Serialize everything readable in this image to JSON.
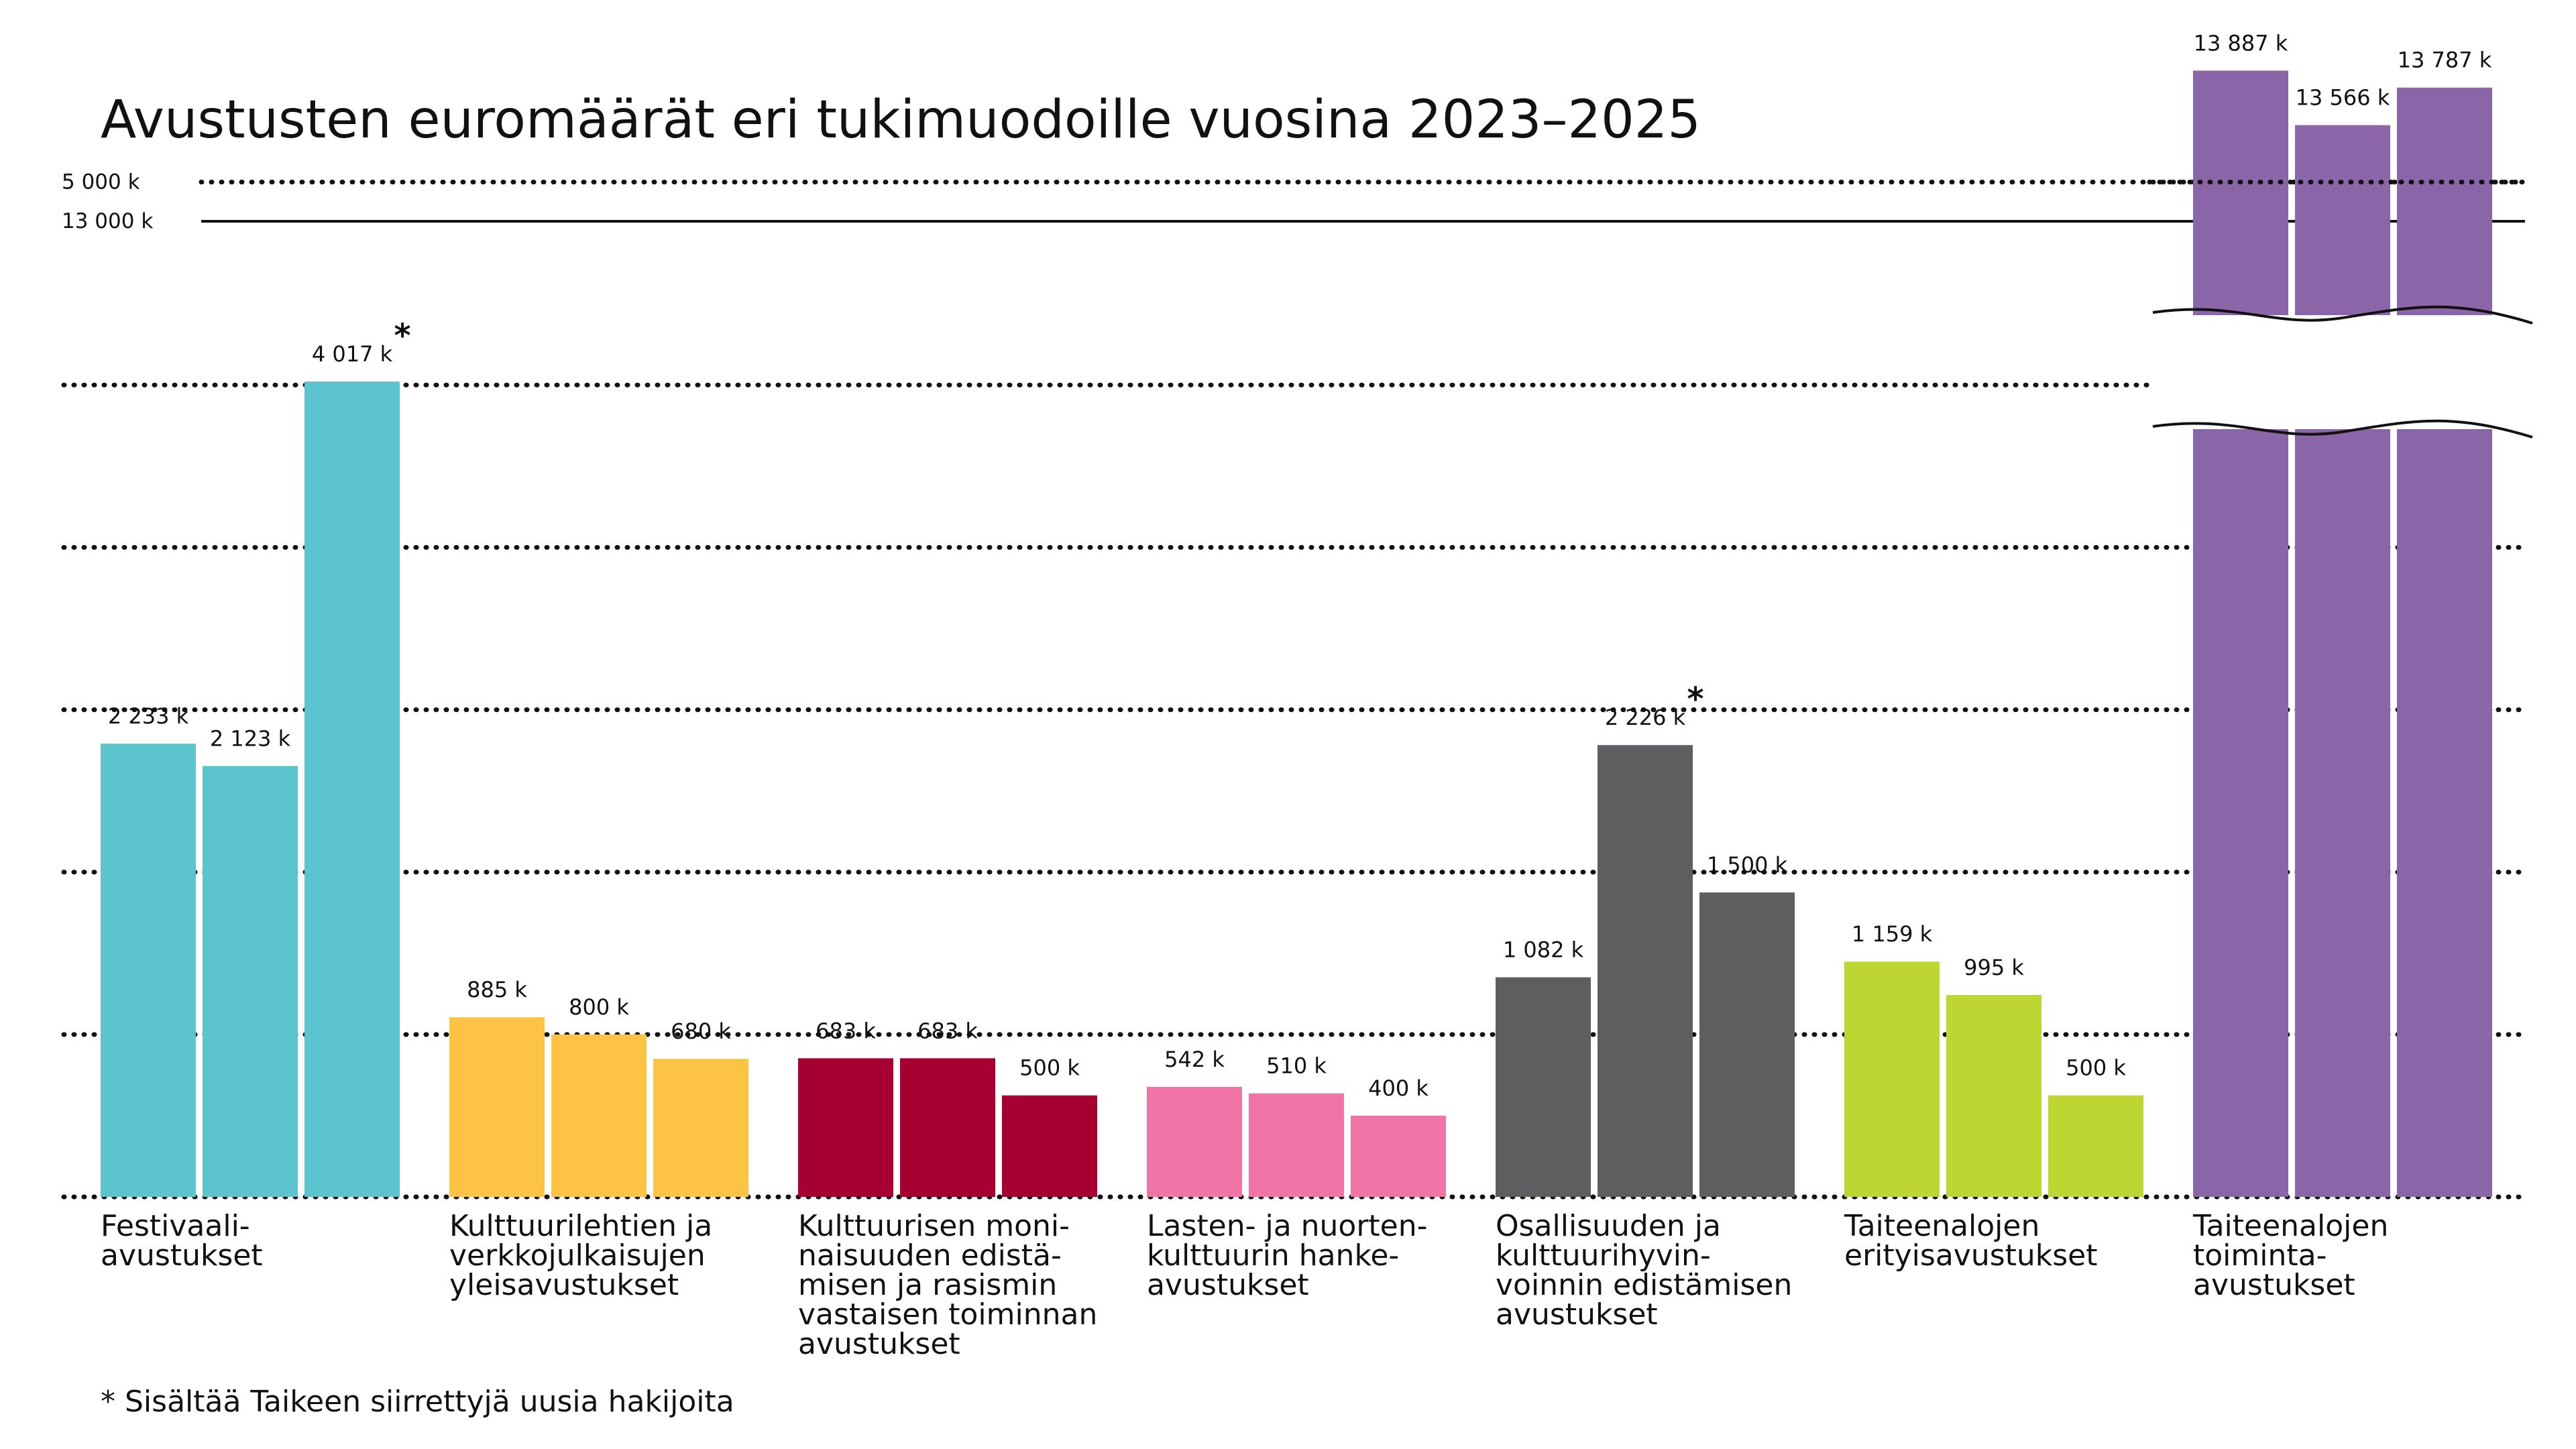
{
  "chart_data": {
    "type": "bar",
    "title": "Avustusten euromäärät eri tukimuodoille vuosina 2023–2025",
    "footnote": "* Sisältää Taikeen siirrettyjä uusia hakijoita",
    "y_ticks": [
      {
        "value": 5000,
        "label": "5 000 k"
      },
      {
        "value": 13000,
        "label": "13 000 k"
      }
    ],
    "gridlines": [
      0,
      800,
      1600,
      2400,
      3200,
      4000,
      5000
    ],
    "axis_break": {
      "from": 5000,
      "to": 13000
    },
    "ylim": [
      0,
      14000
    ],
    "categories": [
      {
        "name_lines": [
          "Festivaali-",
          "avustukset"
        ],
        "color": "#5bc4cc",
        "values": [
          2233,
          2123,
          4017
        ],
        "labels": [
          "2 233 k",
          "2 123 k",
          "4 017 k"
        ],
        "star": [
          false,
          false,
          true
        ]
      },
      {
        "name_lines": [
          "Kulttuurilehtien ja",
          "verkkojulkaisujen",
          "yleisavustukset"
        ],
        "color": "#fdc344",
        "values": [
          885,
          800,
          680
        ],
        "labels": [
          "885 k",
          "800 k",
          "680 k"
        ],
        "star": [
          false,
          false,
          false
        ]
      },
      {
        "name_lines": [
          "Kulttuurisen moni-",
          "naisuuden edistä-",
          "misen ja rasismin",
          "vastaisen toiminnan",
          "avustukset"
        ],
        "color": "#a50031",
        "values": [
          683,
          683,
          500
        ],
        "labels": [
          "683 k",
          "683 k",
          "500 k"
        ],
        "star": [
          false,
          false,
          false
        ]
      },
      {
        "name_lines": [
          "Lasten- ja nuorten-",
          "kulttuurin hanke-",
          "avustukset"
        ],
        "color": "#f075a6",
        "values": [
          542,
          510,
          400
        ],
        "labels": [
          "542 k",
          "510 k",
          "400 k"
        ],
        "star": [
          false,
          false,
          false
        ]
      },
      {
        "name_lines": [
          "Osallisuuden ja",
          "kulttuurihyvin-",
          "voinnin edistämisen",
          "avustukset"
        ],
        "color": "#5e5e60",
        "values": [
          1082,
          2226,
          1500
        ],
        "labels": [
          "1 082 k",
          "2 226 k",
          "1 500 k"
        ],
        "star": [
          false,
          true,
          false
        ]
      },
      {
        "name_lines": [
          "Taiteenalojen",
          "erityisavustukset"
        ],
        "color": "#bed631",
        "values": [
          1159,
          995,
          500
        ],
        "labels": [
          "1 159 k",
          "995 k",
          "500 k"
        ],
        "star": [
          false,
          false,
          false
        ]
      },
      {
        "name_lines": [
          "Taiteenalojen",
          "toiminta-",
          "avustukset"
        ],
        "color": "#8a65a8",
        "values": [
          13887,
          13566,
          13787
        ],
        "labels": [
          "13 887 k",
          "13 566 k",
          "13 787 k"
        ],
        "star": [
          false,
          false,
          false
        ]
      }
    ]
  }
}
